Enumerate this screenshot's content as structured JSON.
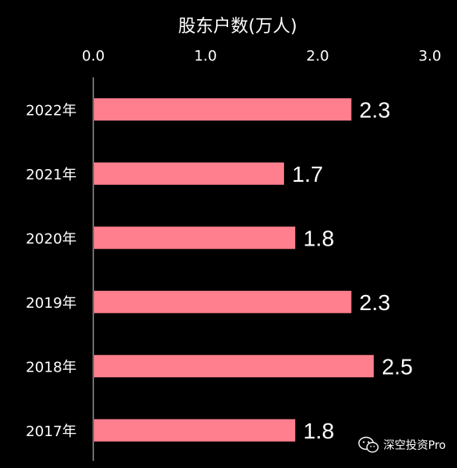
{
  "chart_data": {
    "type": "bar",
    "orientation": "horizontal",
    "title": "股东户数(万人)",
    "categories": [
      "2022年",
      "2021年",
      "2020年",
      "2019年",
      "2018年",
      "2017年"
    ],
    "values": [
      2.3,
      1.7,
      1.8,
      2.3,
      2.5,
      1.8
    ],
    "value_labels": [
      "2.3",
      "1.7",
      "1.8",
      "2.3",
      "2.5",
      "1.8"
    ],
    "xlim": [
      0,
      3
    ],
    "x_ticks": [
      "0.0",
      "1.0",
      "2.0",
      "3.0"
    ],
    "x_axis_position": "top",
    "grid": false,
    "bar_color": "#ff7f8e",
    "text_color": "#ffffff",
    "background": "#000000"
  },
  "watermark": {
    "text": "深空投资Pro",
    "icon": "wechat-icon"
  }
}
